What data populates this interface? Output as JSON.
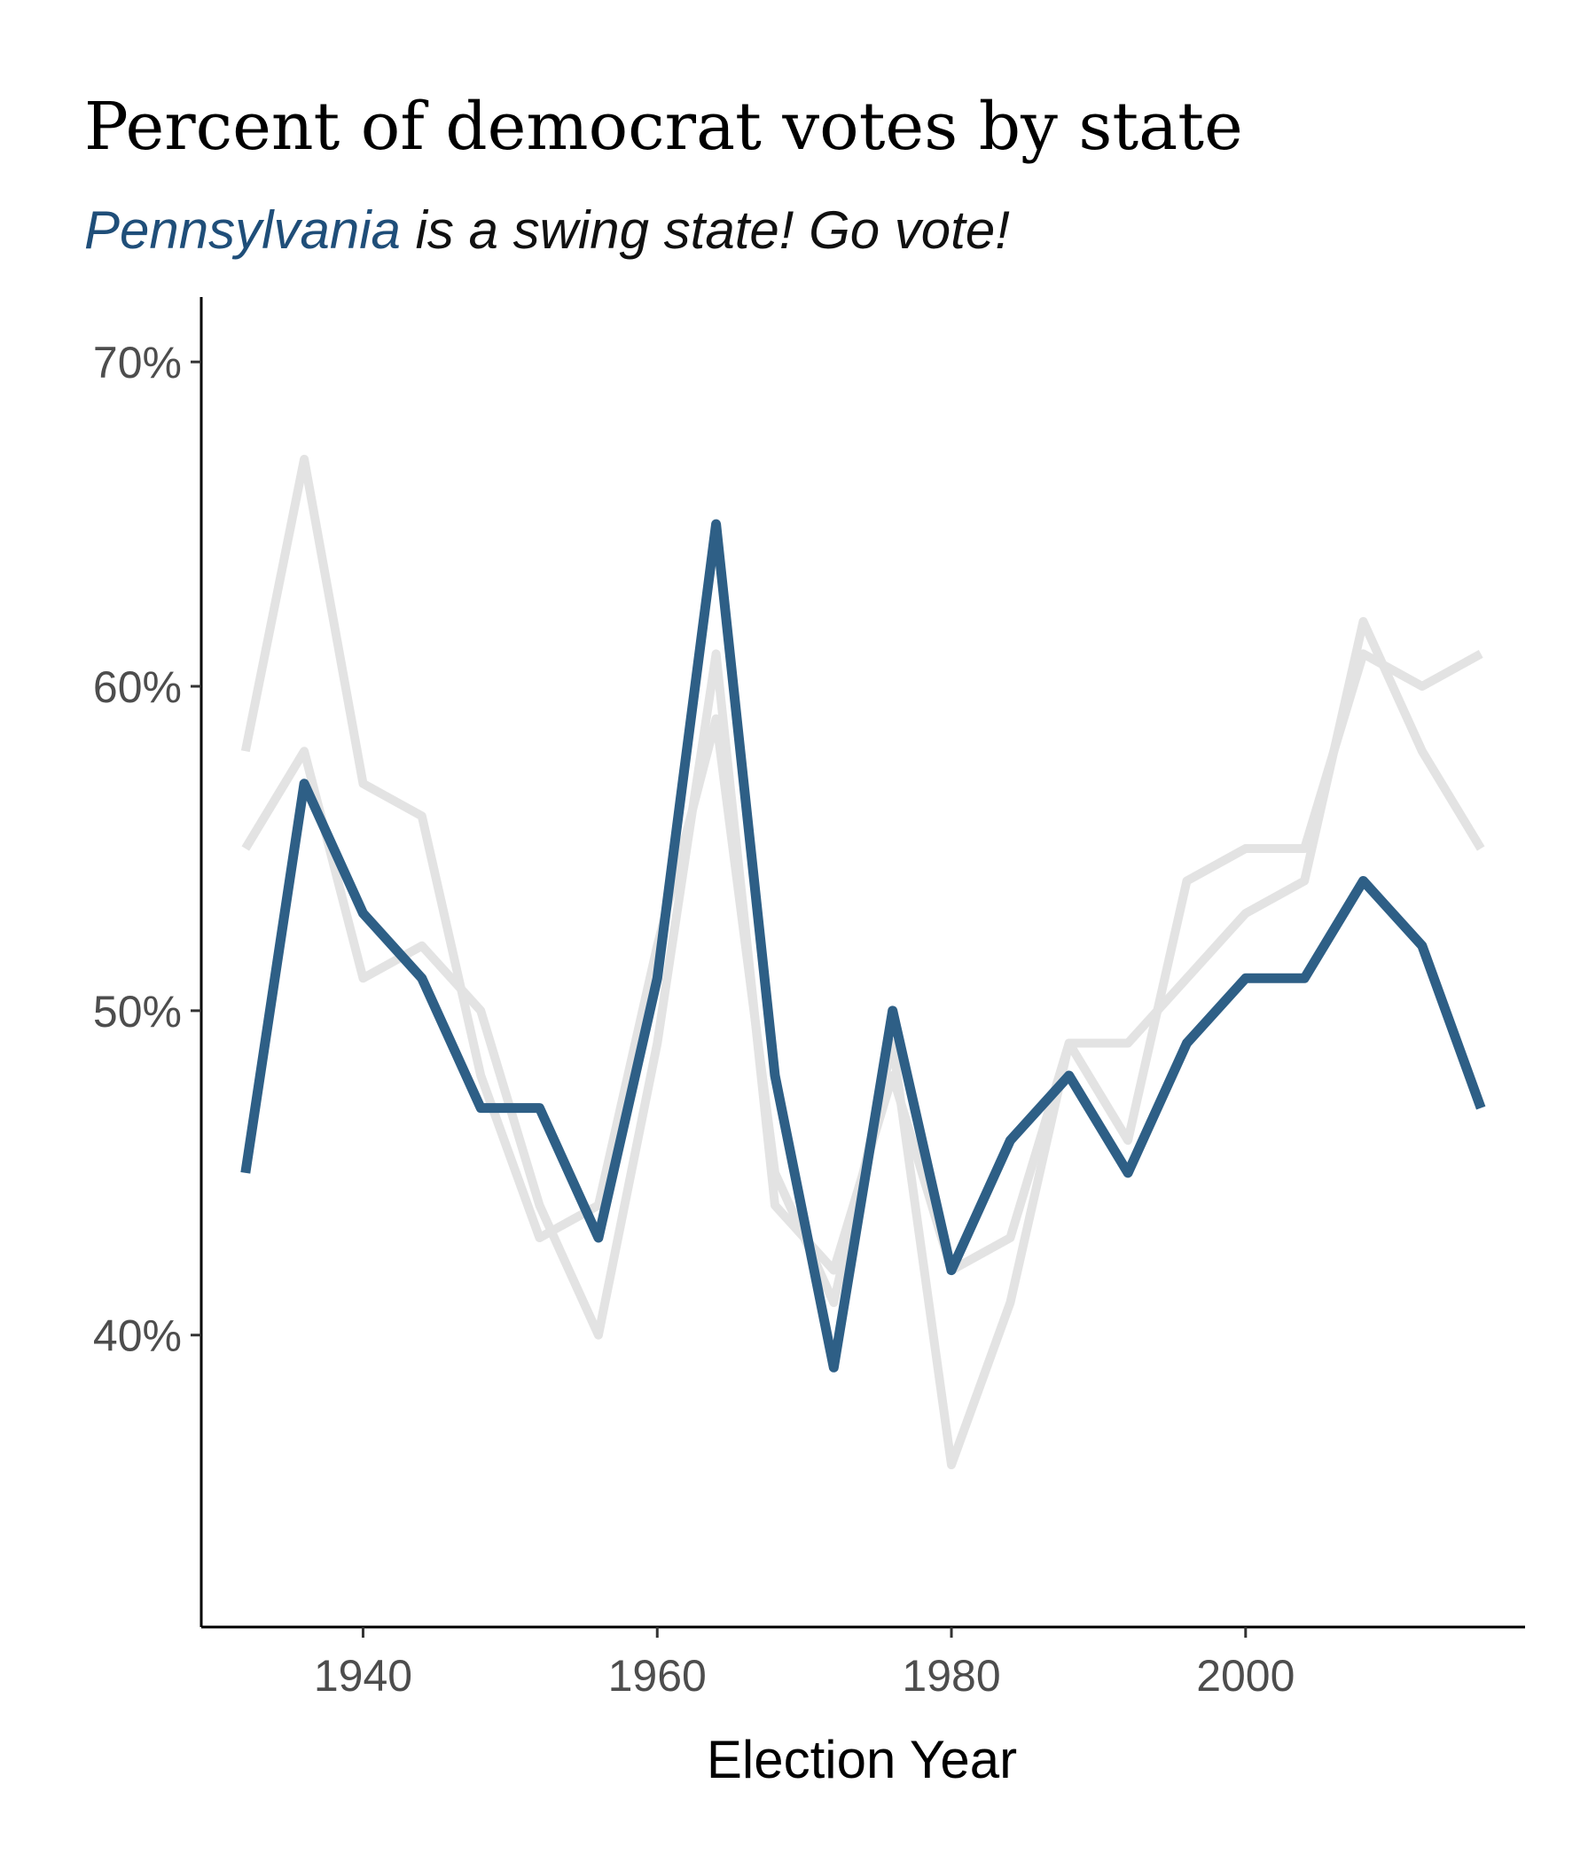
{
  "chart_data": {
    "type": "line",
    "title": "Percent of democrat votes by state",
    "subtitle": {
      "highlight": "Pennsylvania",
      "rest": " is a swing state! Go vote!"
    },
    "xlabel": "Election Year",
    "ylabel": "",
    "xlim": [
      1929,
      2019
    ],
    "ylim": [
      31,
      72
    ],
    "x_ticks": [
      1940,
      1960,
      1980,
      2000
    ],
    "y_ticks": [
      40,
      50,
      60,
      70
    ],
    "y_tick_labels": [
      "40%",
      "50%",
      "60%",
      "70%"
    ],
    "grid": false,
    "legend": "none",
    "colors": {
      "highlight": "#2e5f86",
      "background": "#e3e3e3"
    },
    "x": [
      1932,
      1936,
      1940,
      1944,
      1948,
      1952,
      1956,
      1960,
      1964,
      1968,
      1972,
      1976,
      1980,
      1984,
      1988,
      1992,
      1996,
      2000,
      2004,
      2008,
      2012,
      2016
    ],
    "series": [
      {
        "highlight": true,
        "values": [
          45,
          57,
          53,
          51,
          47,
          47,
          43,
          51,
          65,
          48,
          39,
          50,
          42,
          46,
          48,
          45,
          49,
          51,
          51,
          54,
          52,
          47
        ]
      },
      {
        "highlight": false,
        "values": [
          58,
          67,
          57,
          56,
          48,
          43,
          44,
          52,
          59,
          45,
          41,
          49,
          36,
          41,
          49,
          46,
          54,
          55,
          55,
          61,
          60,
          61
        ]
      },
      {
        "highlight": false,
        "values": [
          55,
          58,
          51,
          52,
          50,
          44,
          40,
          49,
          61,
          44,
          42,
          48,
          42,
          43,
          49,
          49,
          51,
          53,
          54,
          62,
          58,
          55
        ]
      }
    ]
  }
}
